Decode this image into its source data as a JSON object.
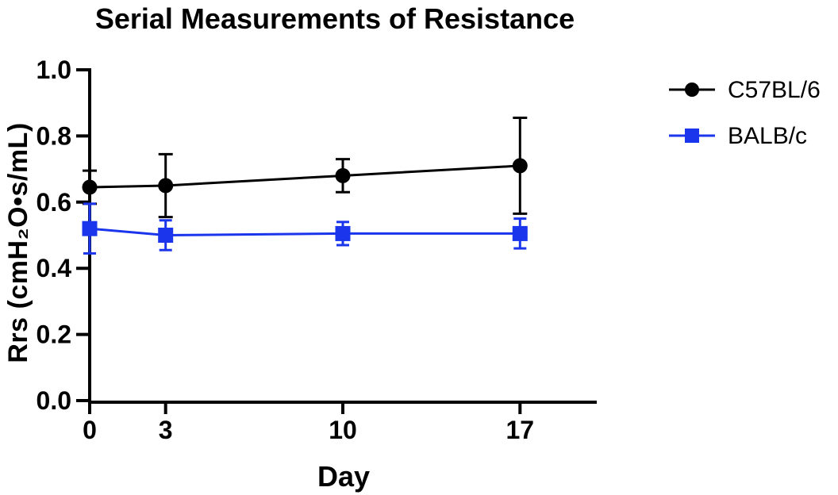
{
  "page": {
    "background": "#ffffff"
  },
  "chart_data": {
    "type": "line",
    "title": "Serial Measurements of Resistance",
    "xlabel": "Day",
    "ylabel": "Rrs (cmH₂O•s/mL)",
    "x": [
      0,
      3,
      10,
      17
    ],
    "x_tick_labels": [
      "0",
      "3",
      "10",
      "17"
    ],
    "y_ticks": [
      0.0,
      0.2,
      0.4,
      0.6,
      0.8,
      1.0
    ],
    "y_tick_labels": [
      "0.0",
      "0.2",
      "0.4",
      "0.6",
      "0.8",
      "1.0"
    ],
    "xlim": [
      0,
      20
    ],
    "ylim": [
      0.0,
      1.0
    ],
    "grid": false,
    "legend_position": "right",
    "error_bars": "symmetric, capped",
    "series": [
      {
        "name": "C57BL/6",
        "color": "#000000",
        "marker": "circle",
        "values": [
          0.645,
          0.65,
          0.68,
          0.71
        ],
        "errors": [
          0.05,
          0.095,
          0.05,
          0.145
        ]
      },
      {
        "name": "BALB/c",
        "color": "#1a35eb",
        "marker": "square",
        "values": [
          0.52,
          0.5,
          0.505,
          0.505
        ],
        "errors": [
          0.075,
          0.045,
          0.035,
          0.045
        ]
      }
    ]
  }
}
